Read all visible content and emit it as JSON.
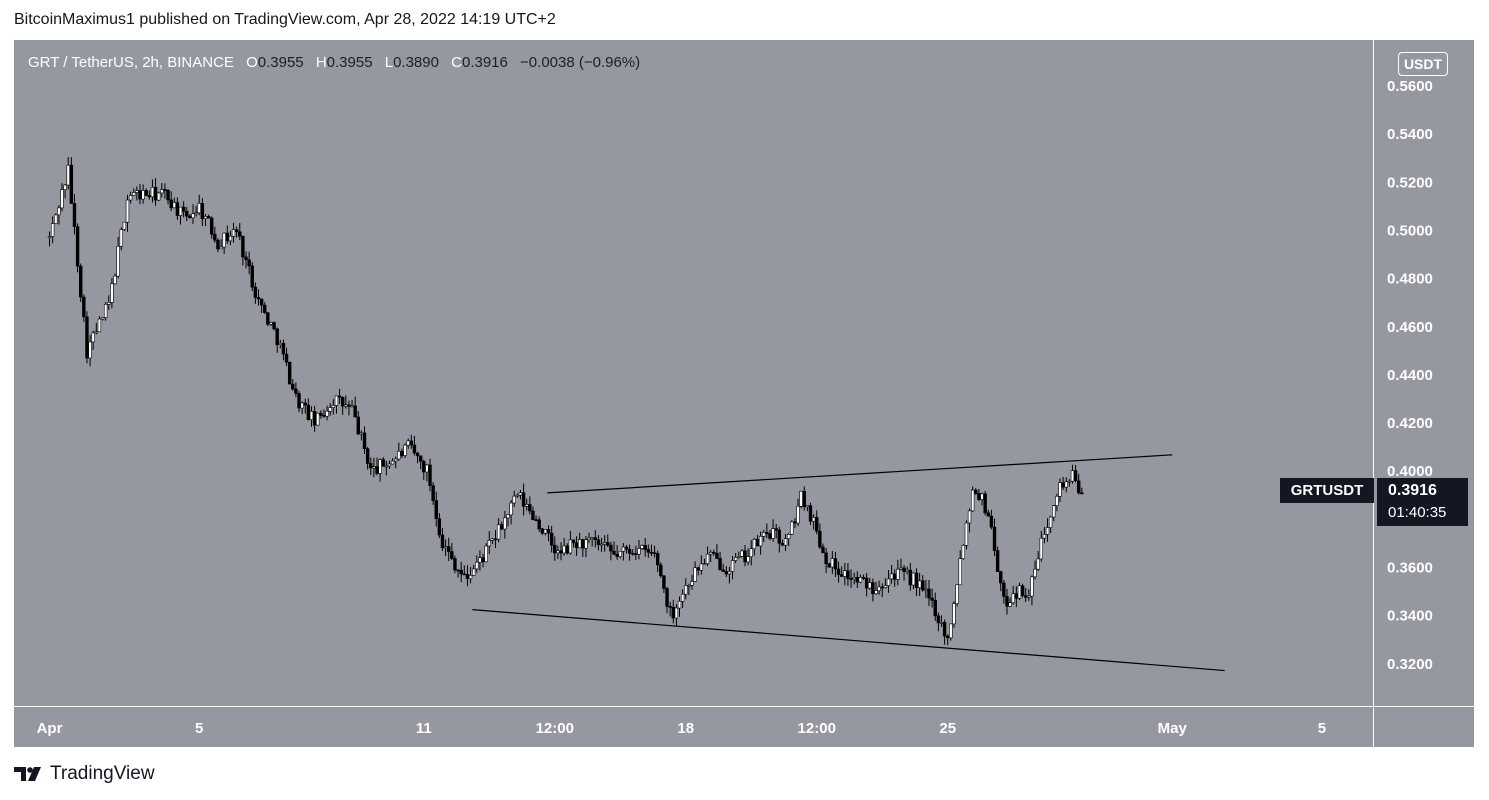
{
  "publisher_line": "BitcoinMaximus1 published on TradingView.com, Apr 28, 2022 14:19 UTC+2",
  "legend": {
    "pair": "GRT / TetherUS, 2h, BINANCE",
    "open_label": "O",
    "open": "0.3955",
    "high_label": "H",
    "high": "0.3955",
    "low_label": "L",
    "low": "0.3890",
    "close_label": "C",
    "close": "0.3916",
    "change": "−0.0038 (−0.96%)"
  },
  "currency_button": "USDT",
  "price_tag": {
    "symbol": "GRTUSDT",
    "price": "0.3916",
    "countdown": "01:40:35"
  },
  "footer": {
    "brand": "TradingView"
  },
  "colors": {
    "plot_bg": "#9598a1",
    "candle": "#ffffff",
    "wick": "#000000",
    "line": "#000000",
    "tag_bg": "#131722"
  },
  "chart_data": {
    "type": "candlestick",
    "interval": "2h",
    "ylim": [
      0.31,
      0.568
    ],
    "y_ticks": [
      "0.5600",
      "0.5400",
      "0.5200",
      "0.5000",
      "0.4800",
      "0.4600",
      "0.4400",
      "0.4200",
      "0.4000",
      "0.3600",
      "0.3400",
      "0.3200"
    ],
    "x_ticks": [
      {
        "label": "Apr",
        "day": 1,
        "bold": true
      },
      {
        "label": "5",
        "day": 5
      },
      {
        "label": "11",
        "day": 11
      },
      {
        "label": "12:00",
        "day": 14.5
      },
      {
        "label": "18",
        "day": 18
      },
      {
        "label": "12:00",
        "day": 21.5
      },
      {
        "label": "25",
        "day": 25
      },
      {
        "label": "May",
        "day": 31,
        "bold": true
      },
      {
        "label": "5",
        "day": 35
      }
    ],
    "xlim_days": [
      1,
      37
    ],
    "price_path_days": [
      1.0,
      1.5,
      2.0,
      2.6,
      3.1,
      3.6,
      4.1,
      4.6,
      5.0,
      5.5,
      6.0,
      6.6,
      7.1,
      7.6,
      8.1,
      8.6,
      9.1,
      9.6,
      10.2,
      10.6,
      11.1,
      11.5,
      12.1,
      12.6,
      13.0,
      13.5,
      14.0,
      14.6,
      15.0,
      15.6,
      16.1,
      16.6,
      17.2,
      17.6,
      18.1,
      18.6,
      19.1,
      19.6,
      20.2,
      20.7,
      21.1,
      21.4,
      21.7,
      22.0,
      22.5,
      23.0,
      23.6,
      24.1,
      24.6,
      25.0,
      25.4,
      25.7,
      26.1,
      26.5,
      26.8,
      27.2,
      27.5,
      27.9,
      28.3,
      28.6
    ],
    "price_path": [
      0.497,
      0.525,
      0.45,
      0.47,
      0.515,
      0.515,
      0.515,
      0.505,
      0.51,
      0.495,
      0.5,
      0.47,
      0.455,
      0.43,
      0.42,
      0.43,
      0.425,
      0.4,
      0.405,
      0.41,
      0.4,
      0.37,
      0.355,
      0.365,
      0.375,
      0.39,
      0.38,
      0.365,
      0.37,
      0.37,
      0.365,
      0.368,
      0.365,
      0.34,
      0.355,
      0.365,
      0.36,
      0.365,
      0.375,
      0.37,
      0.39,
      0.38,
      0.365,
      0.36,
      0.355,
      0.352,
      0.358,
      0.355,
      0.345,
      0.33,
      0.37,
      0.395,
      0.382,
      0.345,
      0.35,
      0.35,
      0.37,
      0.392,
      0.398,
      0.3916
    ],
    "trendlines": [
      {
        "name": "resistance",
        "from": {
          "day": 14.3,
          "price": 0.391
        },
        "to": {
          "day": 31.0,
          "price": 0.4068
        }
      },
      {
        "name": "support",
        "from": {
          "day": 12.3,
          "price": 0.3425
        },
        "to": {
          "day": 32.4,
          "price": 0.3172
        }
      }
    ],
    "last_price": 0.3916
  }
}
